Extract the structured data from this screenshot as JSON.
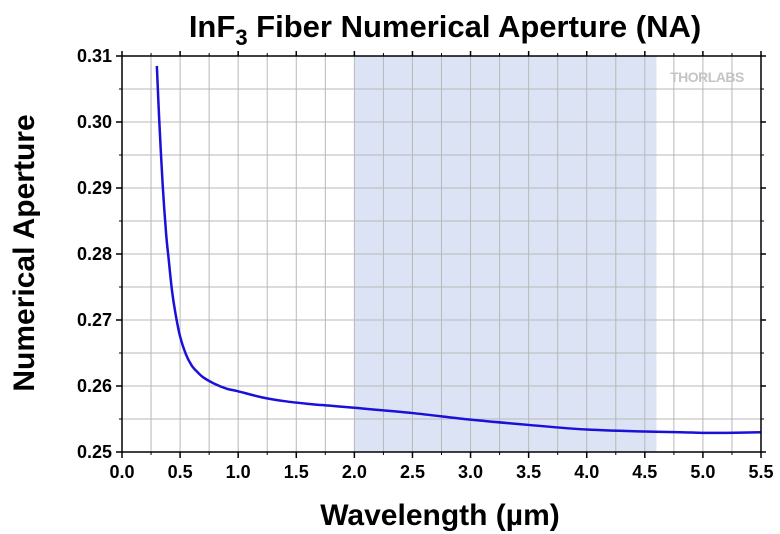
{
  "chart_data": {
    "type": "line",
    "title_main": "InF",
    "title_sub": "3",
    "title_rest": " Fiber Numerical Aperture (NA)",
    "xlabel": "Wavelength (µm)",
    "ylabel": "Numerical Aperture",
    "xlim": [
      0.0,
      5.5
    ],
    "ylim": [
      0.25,
      0.31
    ],
    "x_ticks": [
      "0.0",
      "0.5",
      "1.0",
      "1.5",
      "2.0",
      "2.5",
      "3.0",
      "3.5",
      "4.0",
      "4.5",
      "5.0",
      "5.5"
    ],
    "y_ticks": [
      "0.25",
      "0.26",
      "0.27",
      "0.28",
      "0.29",
      "0.30",
      "0.31"
    ],
    "grid": true,
    "highlight_band": {
      "x_start": 2.0,
      "x_end": 4.6,
      "color": "#dce3f5"
    },
    "series": [
      {
        "color": "#1a10d8",
        "x": [
          0.3,
          0.32,
          0.35,
          0.38,
          0.4,
          0.43,
          0.46,
          0.5,
          0.55,
          0.6,
          0.65,
          0.7,
          0.8,
          0.9,
          1.0,
          1.2,
          1.4,
          1.6,
          1.8,
          2.0,
          2.5,
          3.0,
          3.5,
          4.0,
          4.5,
          4.8,
          5.0,
          5.2,
          5.5
        ],
        "y": [
          0.3085,
          0.3005,
          0.2905,
          0.283,
          0.2795,
          0.2745,
          0.271,
          0.2675,
          0.2648,
          0.2631,
          0.2621,
          0.2613,
          0.2603,
          0.2596,
          0.2592,
          0.2583,
          0.2577,
          0.2573,
          0.257,
          0.2567,
          0.2559,
          0.2549,
          0.2541,
          0.2534,
          0.2531,
          0.253,
          0.2529,
          0.2529,
          0.253
        ]
      }
    ]
  },
  "watermark": "THORLABS"
}
